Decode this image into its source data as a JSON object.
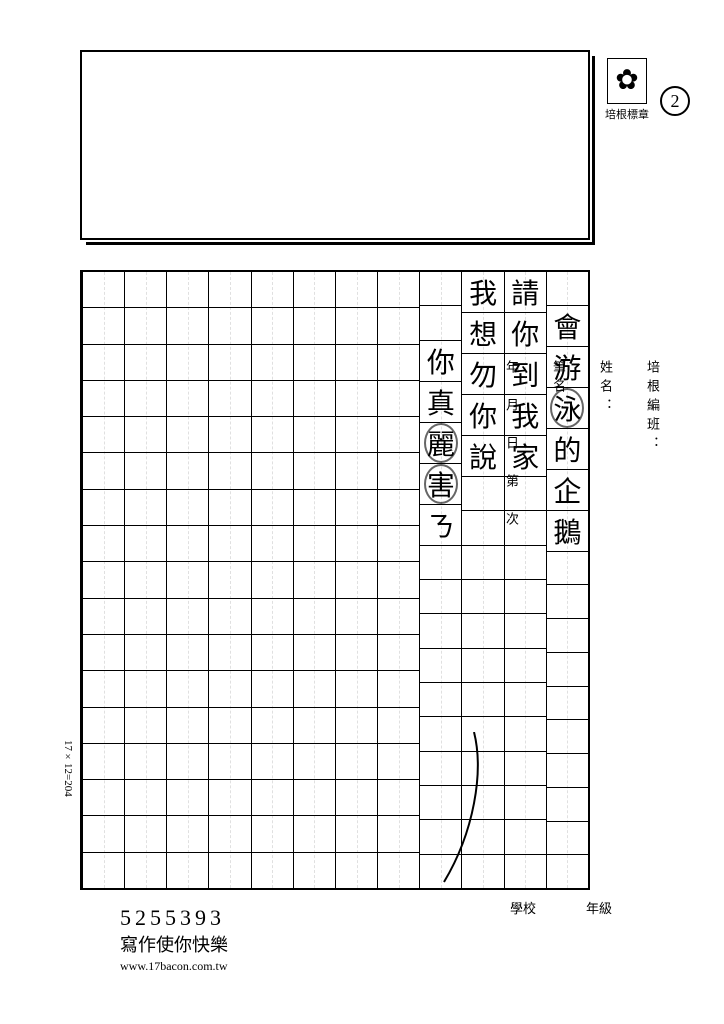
{
  "logo_label": "培根標章",
  "page_number": "2",
  "side_labels": {
    "class": "培根編班：",
    "name": "姓名：",
    "penname": "筆名：",
    "date": "年　月　日　第　次"
  },
  "grid": {
    "cols": 12,
    "rows": 17,
    "formula": "17×12=204"
  },
  "handwriting": {
    "col1": [
      "",
      "會",
      "游",
      "泳",
      "的",
      "企",
      "鵝"
    ],
    "col2": [
      "請",
      "你",
      "到",
      "我",
      "家"
    ],
    "col3": [
      "我",
      "想",
      "勿",
      "你",
      "說"
    ],
    "col4": [
      "",
      "",
      "你",
      "真",
      "麗",
      "害",
      "ㄋ"
    ]
  },
  "corrections": {
    "c1": {
      "col": 1,
      "row": 3,
      "note": "circle"
    },
    "c2": {
      "col": 4,
      "row": 4,
      "note": "circle"
    },
    "c3": {
      "col": 4,
      "row": 5,
      "note": "circle"
    }
  },
  "bottom_labels": {
    "school": "學校",
    "grade": "年級"
  },
  "footer": {
    "number": "5255393",
    "slogan": "寫作使你快樂",
    "url": "www.17bacon.com.tw"
  }
}
